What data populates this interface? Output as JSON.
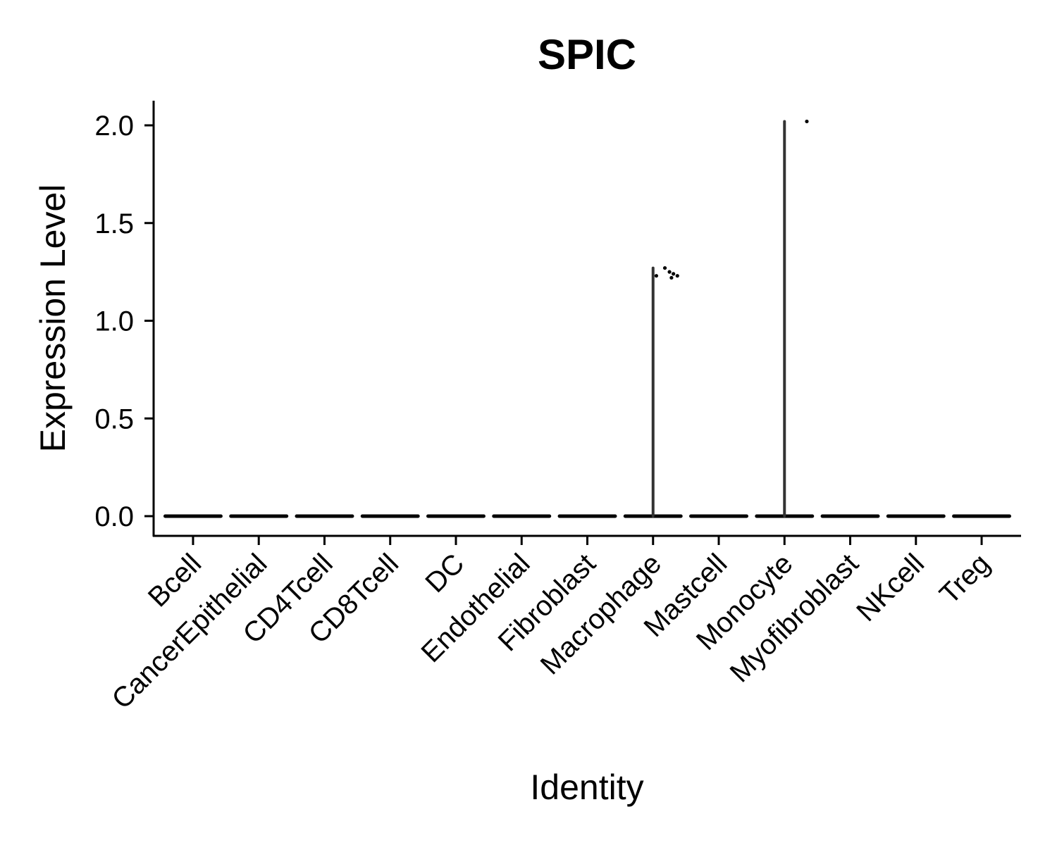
{
  "chart_data": {
    "type": "violin",
    "title": "SPIC",
    "xlabel": "Identity",
    "ylabel": "Expression Level",
    "ylim": [
      -0.1,
      2.12
    ],
    "y_ticks": [
      "0.0",
      "0.5",
      "1.0",
      "1.5",
      "2.0"
    ],
    "categories": [
      "Bcell",
      "CancerEpithelial",
      "CD4Tcell",
      "CD8Tcell",
      "DC",
      "Endothelial",
      "Fibroblast",
      "Macrophage",
      "Mastcell",
      "Monocyte",
      "Myofibroblast",
      "NKcell",
      "Treg"
    ],
    "violins": [
      {
        "category": "Bcell",
        "max": 0
      },
      {
        "category": "CancerEpithelial",
        "max": 0
      },
      {
        "category": "CD4Tcell",
        "max": 0
      },
      {
        "category": "CD8Tcell",
        "max": 0
      },
      {
        "category": "DC",
        "max": 0
      },
      {
        "category": "Endothelial",
        "max": 0
      },
      {
        "category": "Fibroblast",
        "max": 0
      },
      {
        "category": "Macrophage",
        "max": 1.27
      },
      {
        "category": "Mastcell",
        "max": 0
      },
      {
        "category": "Monocyte",
        "max": 2.02
      },
      {
        "category": "Myofibroblast",
        "max": 0
      },
      {
        "category": "NKcell",
        "max": 0
      },
      {
        "category": "Treg",
        "max": 0
      }
    ],
    "points": [
      {
        "category": "Macrophage",
        "jitter": 0.05,
        "y": 1.23
      },
      {
        "category": "Macrophage",
        "jitter": 0.18,
        "y": 1.27
      },
      {
        "category": "Macrophage",
        "jitter": 0.25,
        "y": 1.25
      },
      {
        "category": "Macrophage",
        "jitter": 0.28,
        "y": 1.22
      },
      {
        "category": "Macrophage",
        "jitter": 0.31,
        "y": 1.24
      },
      {
        "category": "Macrophage",
        "jitter": 0.37,
        "y": 1.23
      },
      {
        "category": "Monocyte",
        "jitter": 0.34,
        "y": 2.02
      }
    ],
    "grid": false,
    "legend": "none"
  }
}
